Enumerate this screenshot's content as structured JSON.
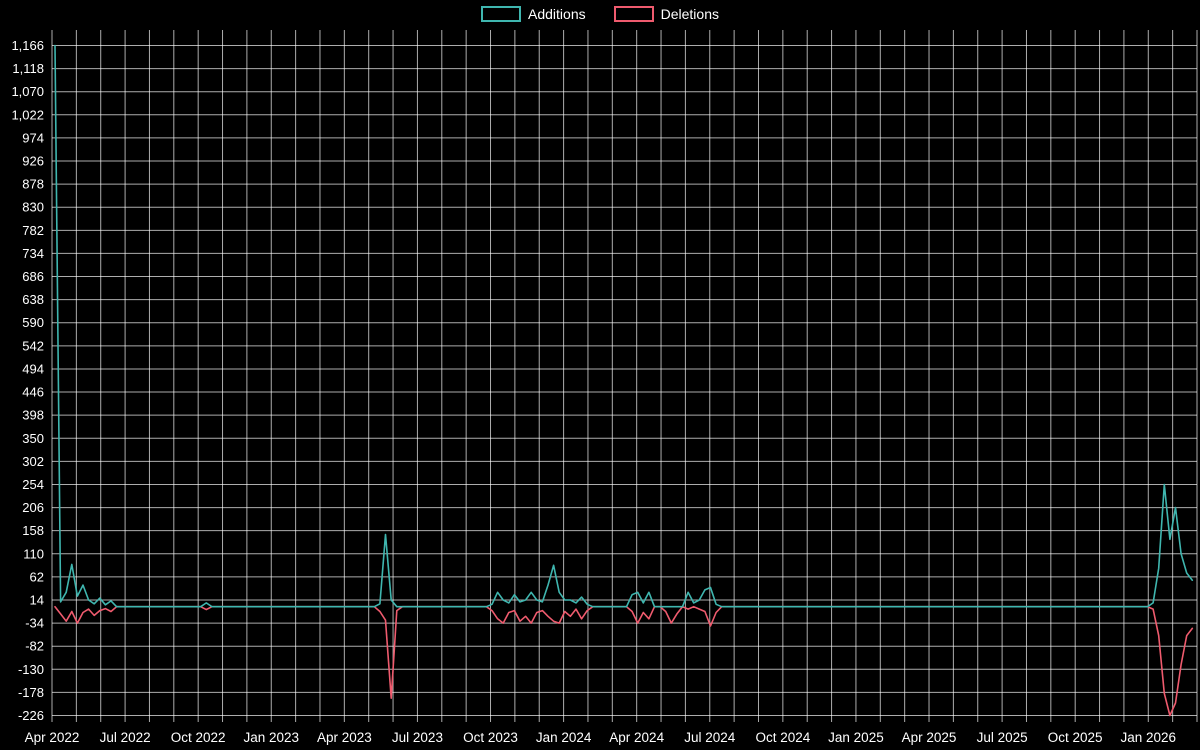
{
  "page": {
    "background": "#000000",
    "text_color": "#ffffff",
    "grid_color": "rgba(255,255,255,0.68)"
  },
  "legend": {
    "items": [
      {
        "label": "Additions",
        "color": "#3fb6af"
      },
      {
        "label": "Deletions",
        "color": "#ef5b6e"
      }
    ]
  },
  "chart_data": {
    "type": "line",
    "title": "",
    "xlabel": "",
    "ylabel": "",
    "legend_position": "top-center",
    "grid": true,
    "background": "#000000",
    "ylim": [
      -226,
      1166
    ],
    "y_axis": {
      "tick_max": 1166,
      "tick_min": -226,
      "tick_step": 48,
      "tick_labels": [
        "1,166",
        "1,118",
        "1,070",
        "1,022",
        "974",
        "926",
        "878",
        "830",
        "782",
        "734",
        "686",
        "638",
        "590",
        "542",
        "494",
        "446",
        "398",
        "350",
        "302",
        "254",
        "206",
        "158",
        "110",
        "62",
        "14",
        "-34",
        "-82",
        "-130",
        "-178",
        "-226"
      ]
    },
    "x_axis": {
      "tick_labels": [
        "Apr 2022",
        "Jul 2022",
        "Oct 2022",
        "Jan 2023",
        "Apr 2023",
        "Jul 2023",
        "Oct 2023",
        "Jan 2024",
        "Apr 2024",
        "Jul 2024",
        "Oct 2024",
        "Jan 2025",
        "Apr 2025",
        "Jul 2025",
        "Oct 2025",
        "Jan 2026"
      ],
      "tick_every_months": 3,
      "months_total": 47,
      "unit": "weeks since Apr 2022"
    },
    "series": [
      {
        "name": "Additions",
        "color": "#3fb6af",
        "points": [
          [
            0,
            1166
          ],
          [
            1,
            10
          ],
          [
            2,
            30
          ],
          [
            3,
            88
          ],
          [
            4,
            22
          ],
          [
            5,
            45
          ],
          [
            6,
            14
          ],
          [
            7,
            6
          ],
          [
            8,
            18
          ],
          [
            9,
            4
          ],
          [
            10,
            12
          ],
          [
            11,
            0
          ],
          [
            26,
            0
          ],
          [
            27,
            8
          ],
          [
            28,
            0
          ],
          [
            57,
            0
          ],
          [
            58,
            6
          ],
          [
            59,
            150
          ],
          [
            60,
            14
          ],
          [
            61,
            0
          ],
          [
            77,
            0
          ],
          [
            78,
            5
          ],
          [
            79,
            30
          ],
          [
            80,
            14
          ],
          [
            81,
            8
          ],
          [
            82,
            25
          ],
          [
            83,
            10
          ],
          [
            84,
            14
          ],
          [
            85,
            30
          ],
          [
            86,
            14
          ],
          [
            87,
            10
          ],
          [
            88,
            45
          ],
          [
            89,
            86
          ],
          [
            90,
            30
          ],
          [
            91,
            14
          ],
          [
            92,
            14
          ],
          [
            93,
            8
          ],
          [
            94,
            20
          ],
          [
            95,
            5
          ],
          [
            96,
            0
          ],
          [
            102,
            0
          ],
          [
            103,
            25
          ],
          [
            104,
            30
          ],
          [
            105,
            8
          ],
          [
            106,
            30
          ],
          [
            107,
            0
          ],
          [
            112,
            0
          ],
          [
            113,
            30
          ],
          [
            114,
            8
          ],
          [
            115,
            14
          ],
          [
            116,
            35
          ],
          [
            117,
            40
          ],
          [
            118,
            5
          ],
          [
            119,
            0
          ],
          [
            195,
            0
          ],
          [
            196,
            8
          ],
          [
            197,
            80
          ],
          [
            198,
            254
          ],
          [
            199,
            140
          ],
          [
            200,
            206
          ],
          [
            201,
            110
          ],
          [
            202,
            70
          ],
          [
            203,
            55
          ]
        ]
      },
      {
        "name": "Deletions",
        "color": "#ef5b6e",
        "points": [
          [
            0,
            0
          ],
          [
            1,
            -15
          ],
          [
            2,
            -30
          ],
          [
            3,
            -10
          ],
          [
            4,
            -34
          ],
          [
            5,
            -12
          ],
          [
            6,
            -5
          ],
          [
            7,
            -18
          ],
          [
            8,
            -8
          ],
          [
            9,
            -4
          ],
          [
            10,
            -10
          ],
          [
            11,
            0
          ],
          [
            26,
            0
          ],
          [
            27,
            -6
          ],
          [
            28,
            0
          ],
          [
            57,
            0
          ],
          [
            58,
            -10
          ],
          [
            59,
            -28
          ],
          [
            60,
            -190
          ],
          [
            61,
            -8
          ],
          [
            62,
            0
          ],
          [
            77,
            0
          ],
          [
            78,
            -8
          ],
          [
            79,
            -25
          ],
          [
            80,
            -34
          ],
          [
            81,
            -12
          ],
          [
            82,
            -8
          ],
          [
            83,
            -30
          ],
          [
            84,
            -20
          ],
          [
            85,
            -34
          ],
          [
            86,
            -12
          ],
          [
            87,
            -8
          ],
          [
            88,
            -20
          ],
          [
            89,
            -30
          ],
          [
            90,
            -34
          ],
          [
            91,
            -10
          ],
          [
            92,
            -20
          ],
          [
            93,
            -5
          ],
          [
            94,
            -25
          ],
          [
            95,
            -8
          ],
          [
            96,
            0
          ],
          [
            102,
            0
          ],
          [
            103,
            -10
          ],
          [
            104,
            -34
          ],
          [
            105,
            -12
          ],
          [
            106,
            -25
          ],
          [
            107,
            0
          ],
          [
            108,
            0
          ],
          [
            109,
            -10
          ],
          [
            110,
            -34
          ],
          [
            111,
            -15
          ],
          [
            112,
            0
          ],
          [
            113,
            -5
          ],
          [
            114,
            0
          ],
          [
            115,
            -5
          ],
          [
            116,
            -10
          ],
          [
            117,
            -40
          ],
          [
            118,
            -12
          ],
          [
            119,
            0
          ],
          [
            195,
            0
          ],
          [
            196,
            -5
          ],
          [
            197,
            -60
          ],
          [
            198,
            -180
          ],
          [
            199,
            -226
          ],
          [
            200,
            -200
          ],
          [
            201,
            -120
          ],
          [
            202,
            -60
          ],
          [
            203,
            -45
          ]
        ]
      }
    ]
  }
}
